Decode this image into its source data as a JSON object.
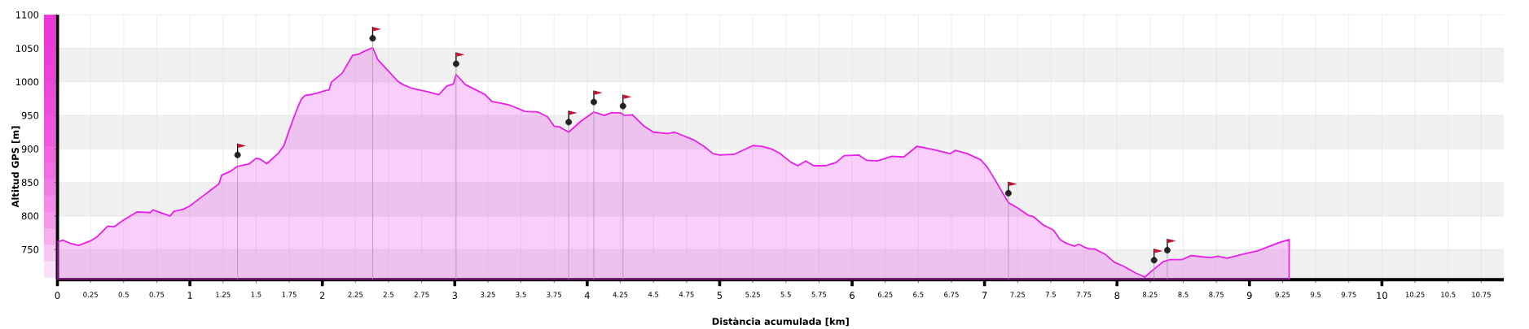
{
  "chart_data": {
    "type": "area",
    "xlabel": "Distància acumulada [km]",
    "ylabel": "Altitud GPS [m]",
    "xlim": [
      0,
      10.92
    ],
    "ylim": [
      705,
      1100
    ],
    "xticks": [
      0,
      0.25,
      0.5,
      0.75,
      1,
      1.25,
      1.5,
      1.75,
      2,
      2.25,
      2.5,
      2.75,
      3,
      3.25,
      3.5,
      3.75,
      4,
      4.25,
      4.5,
      4.75,
      5,
      5.25,
      5.5,
      5.75,
      6,
      6.25,
      6.5,
      6.75,
      7,
      7.25,
      7.5,
      7.75,
      8,
      8.25,
      8.5,
      8.75,
      9,
      9.25,
      9.5,
      9.75,
      10,
      10.25,
      10.5,
      10.75
    ],
    "yticks": [
      750,
      800,
      850,
      900,
      950,
      1000,
      1050,
      1100
    ],
    "grid": true,
    "series": [
      {
        "color": "#e91ee9",
        "x": [
          0,
          0.04,
          0.1,
          0.16,
          0.25,
          0.3,
          0.38,
          0.43,
          0.5,
          0.6,
          0.7,
          0.72,
          0.85,
          0.88,
          0.95,
          1.0,
          1.1,
          1.2,
          1.22,
          1.24,
          1.3,
          1.36,
          1.45,
          1.5,
          1.53,
          1.58,
          1.62,
          1.67,
          1.71,
          1.75,
          1.8,
          1.84,
          1.87,
          1.91,
          1.97,
          2.02,
          2.05,
          2.07,
          2.15,
          2.23,
          2.27,
          2.32,
          2.38,
          2.42,
          2.5,
          2.57,
          2.61,
          2.67,
          2.71,
          2.8,
          2.88,
          2.94,
          2.99,
          3.01,
          3.08,
          3.15,
          3.23,
          3.28,
          3.38,
          3.42,
          3.53,
          3.63,
          3.7,
          3.75,
          3.79,
          3.86,
          3.95,
          4.05,
          4.13,
          4.18,
          4.25,
          4.28,
          4.34,
          4.43,
          4.5,
          4.61,
          4.66,
          4.81,
          4.88,
          4.95,
          5.0,
          5.11,
          5.25,
          5.32,
          5.39,
          5.45,
          5.54,
          5.59,
          5.65,
          5.71,
          5.8,
          5.88,
          5.94,
          6.05,
          6.11,
          6.19,
          6.3,
          6.39,
          6.49,
          6.54,
          6.64,
          6.74,
          6.78,
          6.87,
          6.97,
          7.02,
          7.07,
          7.12,
          7.18,
          7.25,
          7.33,
          7.37,
          7.44,
          7.52,
          7.57,
          7.61,
          7.68,
          7.71,
          7.76,
          7.79,
          7.83,
          7.91,
          7.98,
          8.05,
          8.14,
          8.21,
          8.28,
          8.35,
          8.4,
          8.49,
          8.56,
          8.65,
          8.71,
          8.76,
          8.83,
          8.91,
          8.99,
          9.06,
          9.14,
          9.22,
          9.3
        ],
        "values": [
          761,
          764,
          759,
          756,
          763,
          769,
          785,
          784,
          794,
          806,
          805,
          809,
          800,
          807,
          810,
          815,
          830,
          845,
          848,
          861,
          866,
          874,
          878,
          886,
          885,
          878,
          885,
          894,
          905,
          928,
          955,
          974,
          980,
          981,
          984,
          987,
          988,
          1000,
          1013,
          1040,
          1041,
          1046,
          1051,
          1033,
          1016,
          1001,
          996,
          991,
          989,
          985,
          981,
          994,
          997,
          1011,
          996,
          989,
          981,
          971,
          967,
          965,
          956,
          955,
          948,
          934,
          933,
          925,
          941,
          955,
          950,
          954,
          954,
          950,
          951,
          934,
          925,
          923,
          925,
          913,
          904,
          893,
          891,
          892,
          905,
          904,
          900,
          894,
          880,
          875,
          882,
          875,
          875,
          880,
          890,
          891,
          883,
          882,
          889,
          888,
          904,
          902,
          898,
          893,
          898,
          893,
          884,
          873,
          857,
          840,
          820,
          812,
          801,
          799,
          787,
          779,
          765,
          760,
          755,
          758,
          753,
          751,
          751,
          743,
          731,
          725,
          715,
          709,
          721,
          732,
          735,
          735,
          741,
          739,
          738,
          740,
          737,
          741,
          745,
          748,
          754,
          760,
          765
        ]
      },
      {
        "type": "lollipop",
        "color": "#222222",
        "marker": "circle",
        "x": [
          1.36,
          2.38,
          3.01,
          3.86,
          4.05,
          4.27,
          7.18,
          8.28,
          8.38
        ],
        "values": [
          891,
          1065,
          1027,
          940,
          970,
          964,
          834,
          734,
          749
        ]
      }
    ]
  }
}
